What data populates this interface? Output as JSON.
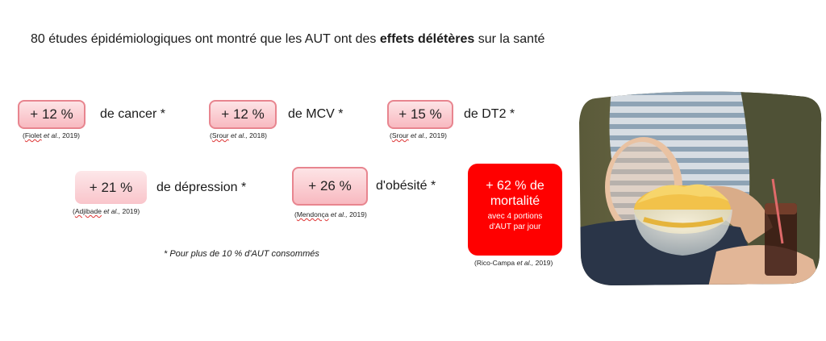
{
  "title": {
    "prefix": "80 études épidémiologiques ont montré que les AUT ont des ",
    "bold": "effets délétères",
    "suffix": " sur la santé"
  },
  "stats": [
    {
      "value": "+ 12 %",
      "label": "de cancer *",
      "ref_name": "Fiolet",
      "ref_etal": "et al.,",
      "ref_year": " 2019)"
    },
    {
      "value": "+ 12 %",
      "label": "de MCV *",
      "ref_name": "Srour",
      "ref_etal": "et al.,",
      "ref_year": " 2018)"
    },
    {
      "value": "+ 15 %",
      "label": "de DT2 *",
      "ref_name": "Srour",
      "ref_etal": "et al.,",
      "ref_year": " 2019)"
    },
    {
      "value": "+ 21 %",
      "label": "de dépression *",
      "ref_name": "Adjibade",
      "ref_etal": "et al.,",
      "ref_year": " 2019)"
    },
    {
      "value": "+ 26 %",
      "label": "d'obésité *",
      "ref_name": "Mendonça",
      "ref_etal": "et al.,",
      "ref_year": " 2019)"
    }
  ],
  "note": "* Pour plus de 10 % d'AUT consommés",
  "mortality": {
    "line1": "+ 62 % de",
    "line2": "mortalité",
    "line3": "avec 4 portions",
    "line4": "d'AUT par jour",
    "ref_name": "Rico-Campa",
    "ref_etal": "et al.,",
    "ref_year": " 2019)"
  },
  "colors": {
    "accent": "#ff0000",
    "box_border": "#e8858f",
    "box_fill": "#f8b9c0"
  }
}
